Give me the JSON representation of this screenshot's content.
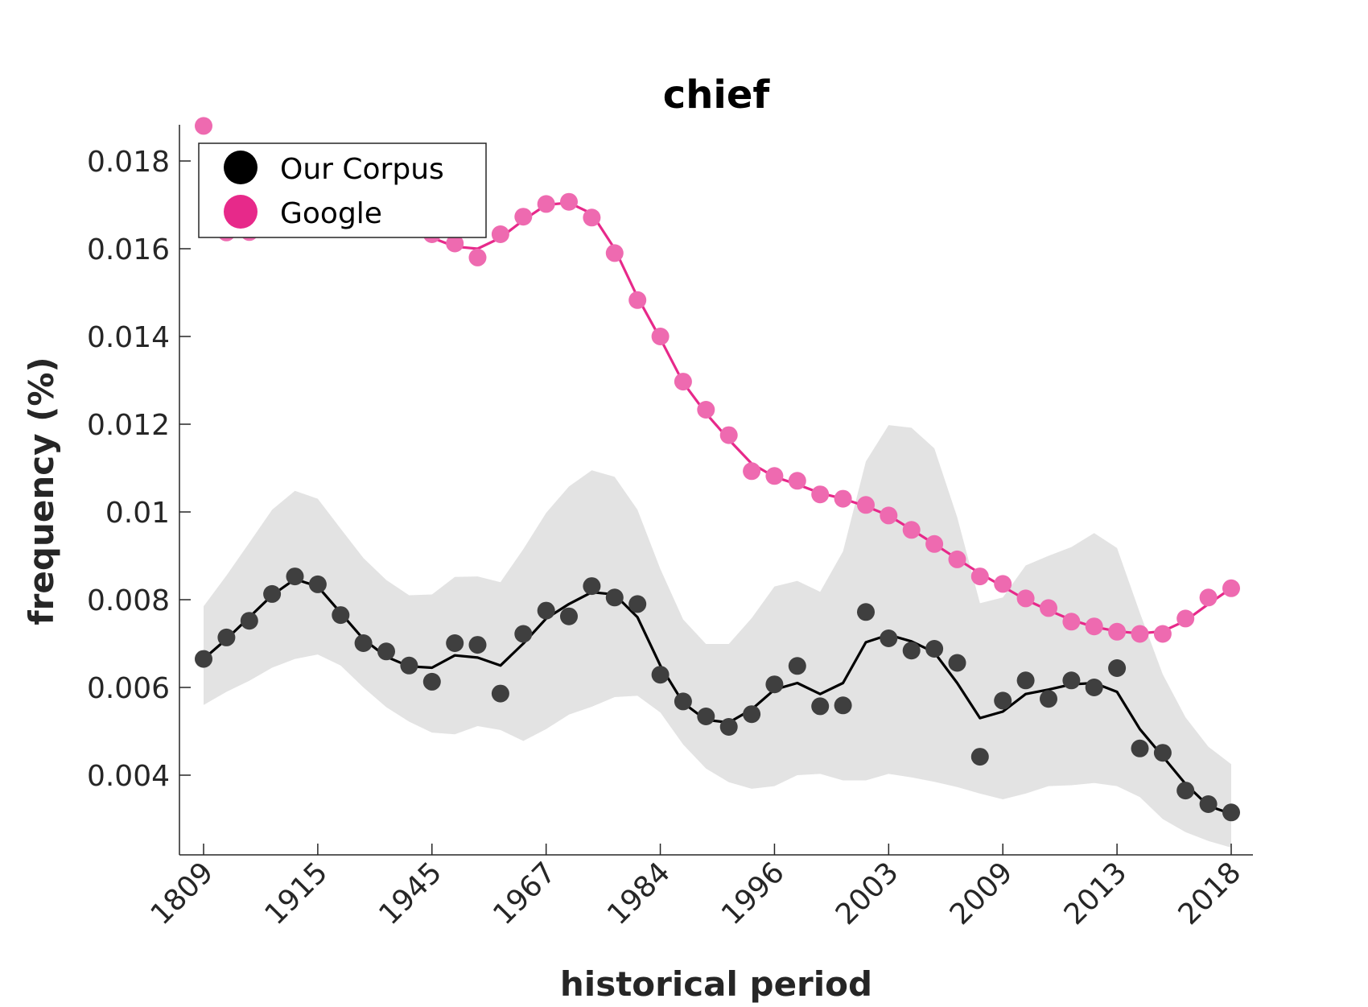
{
  "chart_data": {
    "type": "scatter",
    "title": "chief",
    "xlabel": "historical period",
    "ylabel": "frequency (%)",
    "x_tick_labels": [
      "1809",
      "1915",
      "1945",
      "1967",
      "1984",
      "1996",
      "2003",
      "2009",
      "2013",
      "2018"
    ],
    "y_tick_labels": [
      "0.004",
      "0.006",
      "0.008",
      "0.01",
      "0.012",
      "0.014",
      "0.016",
      "0.018"
    ],
    "ylim": [
      0.0032,
      0.0188
    ],
    "x_index_range": [
      0,
      45
    ],
    "grid": false,
    "legend_position": "top-left",
    "series": [
      {
        "name": "Our Corpus",
        "color": "#000000",
        "points": [
          0.00665,
          0.00714,
          0.00752,
          0.00813,
          0.00853,
          0.00835,
          0.00765,
          0.00701,
          0.00682,
          0.0065,
          0.00613,
          0.00701,
          0.00697,
          0.00586,
          0.00722,
          0.00775,
          0.00762,
          0.00831,
          0.00805,
          0.0079,
          0.00629,
          0.00568,
          0.00534,
          0.0051,
          0.00539,
          0.00607,
          0.00649,
          0.00557,
          0.00559,
          0.00772,
          0.00712,
          0.00684,
          0.00688,
          0.00656,
          0.00442,
          0.0057,
          0.00616,
          0.00574,
          0.00616,
          0.006,
          0.00644,
          0.00461,
          0.00451,
          0.00365,
          0.00334,
          0.00315
        ],
        "smooth": [
          0.00665,
          0.0071,
          0.0076,
          0.0081,
          0.00847,
          0.0083,
          0.0077,
          0.0071,
          0.0067,
          0.00648,
          0.00645,
          0.00673,
          0.00668,
          0.0065,
          0.007,
          0.00757,
          0.0079,
          0.00817,
          0.00812,
          0.0076,
          0.0065,
          0.00565,
          0.00526,
          0.0052,
          0.0055,
          0.00595,
          0.0061,
          0.00585,
          0.0061,
          0.00703,
          0.0072,
          0.00705,
          0.0068,
          0.0061,
          0.0053,
          0.00545,
          0.00585,
          0.00595,
          0.00607,
          0.0061,
          0.0059,
          0.00505,
          0.00443,
          0.0038,
          0.0033,
          0.00312
        ],
        "band_upper": [
          0.00785,
          0.00855,
          0.0093,
          0.01005,
          0.01048,
          0.0103,
          0.00962,
          0.00895,
          0.00845,
          0.0081,
          0.00812,
          0.00852,
          0.00853,
          0.0084,
          0.00915,
          0.00998,
          0.01058,
          0.01095,
          0.0108,
          0.01005,
          0.0087,
          0.00755,
          0.00699,
          0.00699,
          0.00758,
          0.0083,
          0.00843,
          0.00818,
          0.0091,
          0.01115,
          0.01198,
          0.01192,
          0.01145,
          0.00988,
          0.00792,
          0.00805,
          0.00878,
          0.009,
          0.0092,
          0.00952,
          0.00918,
          0.0077,
          0.0063,
          0.00532,
          0.00465,
          0.00425
        ],
        "band_lower": [
          0.0056,
          0.0059,
          0.00615,
          0.00645,
          0.00665,
          0.00675,
          0.0065,
          0.006,
          0.00555,
          0.00522,
          0.00497,
          0.00493,
          0.00512,
          0.00503,
          0.00478,
          0.00505,
          0.00538,
          0.00556,
          0.00578,
          0.00581,
          0.00543,
          0.0047,
          0.00415,
          0.00384,
          0.00369,
          0.00375,
          0.004,
          0.00403,
          0.00388,
          0.00388,
          0.00403,
          0.00395,
          0.00385,
          0.00373,
          0.00358,
          0.00345,
          0.00358,
          0.00375,
          0.00377,
          0.00382,
          0.00375,
          0.0035,
          0.003,
          0.0027,
          0.0025,
          0.00235
        ]
      },
      {
        "name": "Google",
        "color": "#e7298a",
        "points": [
          0.0188,
          0.01637,
          0.01638,
          0.0166,
          0.0166,
          0.01662,
          0.0166,
          0.0166,
          0.0166,
          0.01645,
          0.01633,
          0.01612,
          0.0158,
          0.01633,
          0.01673,
          0.01702,
          0.01707,
          0.01671,
          0.0159,
          0.01483,
          0.014,
          0.01297,
          0.01233,
          0.01175,
          0.01093,
          0.01082,
          0.01071,
          0.0104,
          0.0103,
          0.01016,
          0.00992,
          0.00959,
          0.00927,
          0.00892,
          0.00853,
          0.00836,
          0.00803,
          0.00781,
          0.0075,
          0.00739,
          0.00727,
          0.00722,
          0.00722,
          0.00757,
          0.00805,
          0.00826
        ],
        "smooth": [
          0.0184,
          0.0168,
          0.0165,
          0.01655,
          0.01658,
          0.0166,
          0.0166,
          0.01658,
          0.01652,
          0.0164,
          0.01625,
          0.01605,
          0.016,
          0.01625,
          0.01665,
          0.017,
          0.01705,
          0.0168,
          0.016,
          0.0149,
          0.01395,
          0.01295,
          0.01225,
          0.01165,
          0.0111,
          0.0108,
          0.01063,
          0.01043,
          0.0103,
          0.01013,
          0.00992,
          0.0096,
          0.00927,
          0.00893,
          0.0086,
          0.0083,
          0.008,
          0.00776,
          0.00754,
          0.00738,
          0.00728,
          0.00723,
          0.00728,
          0.00752,
          0.0079,
          0.00826
        ]
      }
    ]
  }
}
